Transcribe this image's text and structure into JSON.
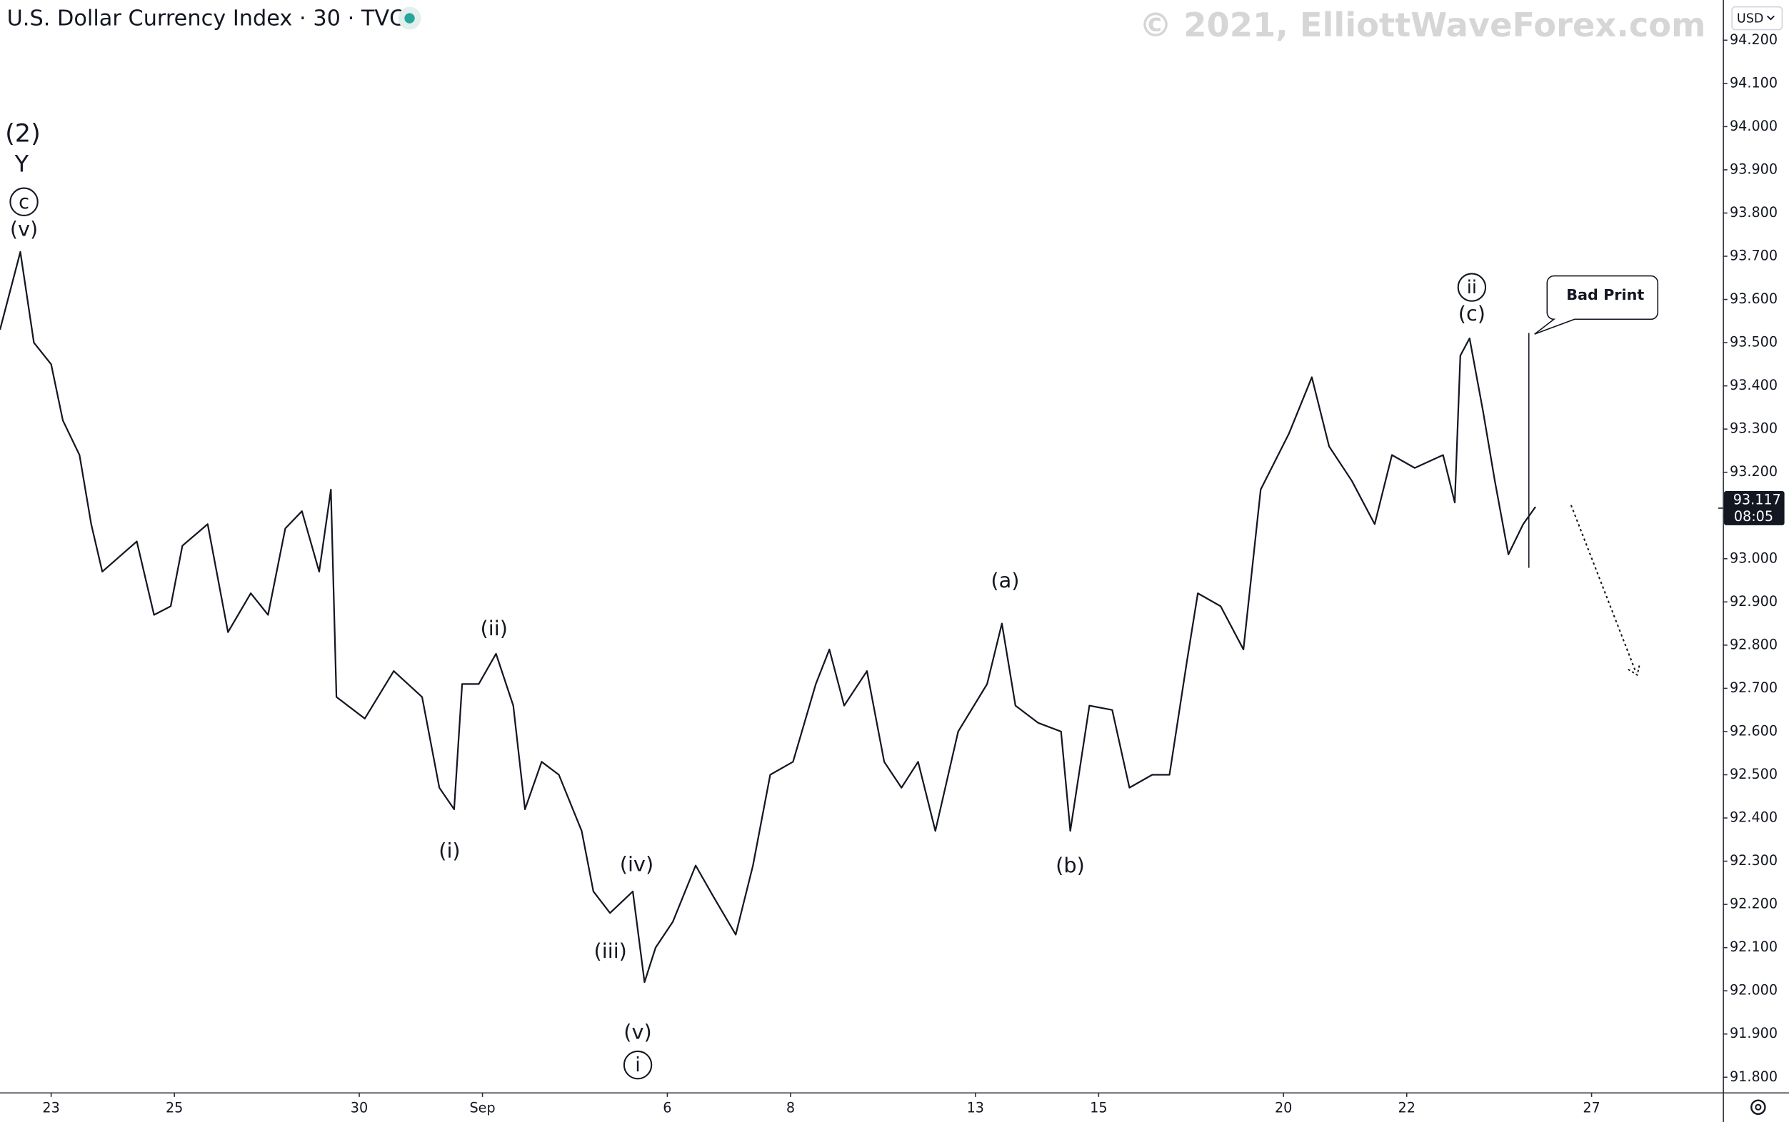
{
  "chart_data": {
    "type": "line",
    "title": "U.S. Dollar Currency Index · 30 · TVC",
    "watermark": "© 2021, ElliottWaveForex.com",
    "currency": "USD",
    "last_price": {
      "value": 93.117,
      "label": "93.117",
      "countdown": "08:05"
    },
    "annotations": [
      "(2)",
      "Y",
      "c",
      "(v)",
      "(ii)",
      "(i)",
      "(iv)",
      "(iii)",
      "(v)",
      "i",
      "(a)",
      "(b)",
      "ii",
      "(c)",
      "Bad Print"
    ],
    "color": "#131722",
    "x": [
      -0.83,
      -0.5,
      -0.28,
      0,
      0.19,
      0.46,
      0.65,
      0.83,
      1.39,
      1.67,
      1.94,
      2.13,
      2.54,
      2.87,
      3.24,
      3.52,
      3.8,
      4.07,
      4.35,
      4.54,
      4.63,
      5.09,
      5.56,
      6.02,
      6.3,
      6.54,
      6.67,
      6.94,
      7.22,
      7.5,
      7.69,
      7.96,
      8.24,
      8.61,
      8.8,
      9.07,
      9.44,
      9.63,
      9.81,
      10.09,
      10.46,
      10.74,
      11.11,
      11.39,
      11.67,
      12.04,
      12.41,
      12.63,
      12.87,
      13.24,
      13.52,
      13.8,
      14.07,
      14.35,
      14.72,
      15.19,
      15.43,
      15.65,
      16.02,
      16.39,
      16.54,
      16.85,
      17.22,
      17.5,
      17.87,
      18.15,
      18.43,
      18.61,
      18.98,
      19.35,
      19.63,
      20.09,
      20.46,
      20.74,
      21.11,
      21.48,
      21.76,
      22.13,
      22.59,
      22.78,
      22.87,
      23.02,
      23.24,
      23.43,
      23.65,
      23.89,
      24.09
    ],
    "values": [
      93.53,
      93.71,
      93.5,
      93.45,
      93.32,
      93.24,
      93.08,
      92.97,
      93.04,
      92.87,
      92.89,
      93.03,
      93.08,
      92.83,
      92.92,
      92.87,
      93.07,
      93.11,
      92.97,
      93.16,
      92.68,
      92.63,
      92.74,
      92.68,
      92.47,
      92.42,
      92.71,
      92.71,
      92.78,
      92.66,
      92.42,
      92.53,
      92.5,
      92.37,
      92.23,
      92.18,
      92.23,
      92.02,
      92.1,
      92.16,
      92.29,
      92.22,
      92.13,
      92.29,
      92.5,
      92.53,
      92.71,
      92.79,
      92.66,
      92.74,
      92.53,
      92.47,
      92.53,
      92.37,
      92.6,
      92.71,
      92.85,
      92.66,
      92.62,
      92.6,
      92.37,
      92.66,
      92.65,
      92.47,
      92.5,
      92.5,
      92.76,
      92.92,
      92.89,
      92.79,
      93.16,
      93.29,
      93.42,
      93.26,
      93.18,
      93.08,
      93.24,
      93.21,
      93.24,
      93.13,
      93.47,
      93.51,
      93.34,
      93.18,
      93.01,
      93.08,
      93.12
    ],
    "xlim": [
      -0.83,
      27.13
    ],
    "xticks": [
      {
        "value": 0,
        "label": "23"
      },
      {
        "value": 2,
        "label": "25"
      },
      {
        "value": 5,
        "label": "30"
      },
      {
        "value": 7,
        "label": "Sep"
      },
      {
        "value": 10,
        "label": "6"
      },
      {
        "value": 12,
        "label": "8"
      },
      {
        "value": 15,
        "label": "13"
      },
      {
        "value": 17,
        "label": "15"
      },
      {
        "value": 20,
        "label": "20"
      },
      {
        "value": 22,
        "label": "22"
      },
      {
        "value": 25,
        "label": "27"
      }
    ],
    "ylim": [
      91.765,
      94.293
    ],
    "yticks": [
      {
        "value": 91.8,
        "label": "91.800"
      },
      {
        "value": 91.9,
        "label": "91.900"
      },
      {
        "value": 92.0,
        "label": "92.000"
      },
      {
        "value": 92.1,
        "label": "92.100"
      },
      {
        "value": 92.2,
        "label": "92.200"
      },
      {
        "value": 92.3,
        "label": "92.300"
      },
      {
        "value": 92.4,
        "label": "92.400"
      },
      {
        "value": 92.5,
        "label": "92.500"
      },
      {
        "value": 92.6,
        "label": "92.600"
      },
      {
        "value": 92.7,
        "label": "92.700"
      },
      {
        "value": 92.8,
        "label": "92.800"
      },
      {
        "value": 92.9,
        "label": "92.900"
      },
      {
        "value": 93.0,
        "label": "93.000"
      },
      {
        "value": 93.1,
        "label": "93.100"
      },
      {
        "value": 93.2,
        "label": "93.200"
      },
      {
        "value": 93.3,
        "label": "93.300"
      },
      {
        "value": 93.4,
        "label": "93.400"
      },
      {
        "value": 93.5,
        "label": "93.500"
      },
      {
        "value": 93.6,
        "label": "93.600"
      },
      {
        "value": 93.7,
        "label": "93.700"
      },
      {
        "value": 93.8,
        "label": "93.800"
      },
      {
        "value": 93.9,
        "label": "93.900"
      },
      {
        "value": 94.0,
        "label": "94.000"
      },
      {
        "value": 94.1,
        "label": "94.100"
      },
      {
        "value": 94.2,
        "label": "94.200"
      }
    ],
    "grid": false
  }
}
